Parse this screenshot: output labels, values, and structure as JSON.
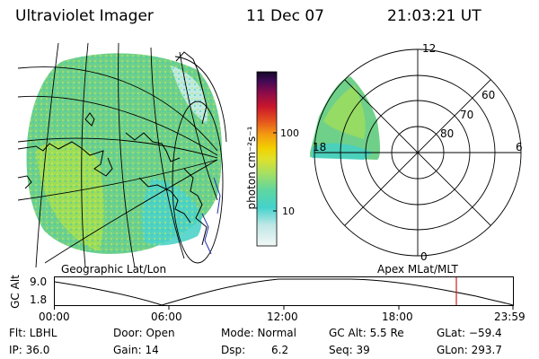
{
  "header": {
    "instrument": "Ultraviolet Imager",
    "date": "11 Dec 07",
    "time": "21:03:21 UT"
  },
  "colorbar": {
    "unit_label": "photon cm⁻²s⁻¹",
    "ticks": [
      "100",
      "10"
    ],
    "colors": [
      "#e9f4f1",
      "#c4e8e6",
      "#4fd6cf",
      "#36c8b9",
      "#78d88c",
      "#b4e266",
      "#dfe12b",
      "#f2d100",
      "#f39a12",
      "#e4511e",
      "#c9162c",
      "#a50d3e",
      "#7a0a52",
      "#3e0a55",
      "#1a0a3a"
    ]
  },
  "map_panel": {
    "caption": "Geographic Lat/Lon",
    "aurora_color": "#6fd089"
  },
  "polar_panel": {
    "caption": "Apex MLat/MLT",
    "mlt_labels": [
      "12",
      "6",
      "0",
      "18"
    ],
    "lat_labels": [
      "60",
      "70",
      "80"
    ]
  },
  "altitude_plot": {
    "ylabel": "GC Alt",
    "y_ticks": [
      "9.0",
      "1.8"
    ],
    "x_ticks": [
      "00:00",
      "06:00",
      "12:00",
      "18:00",
      "23:59"
    ],
    "current_marker_color": "#cc2020"
  },
  "status": {
    "flt": "Flt: LBHL",
    "ip": "IP: 36.0",
    "door": "Door: Open",
    "gain": "Gain: 14",
    "mode": "Mode: Normal",
    "dsp": "Dsp:",
    "dsp_value": "6.2",
    "gc_alt": "GC Alt: 5.5 Re",
    "seq": "Seq: 39",
    "glat": "GLat: −59.4",
    "glon": "GLon: 293.7"
  }
}
